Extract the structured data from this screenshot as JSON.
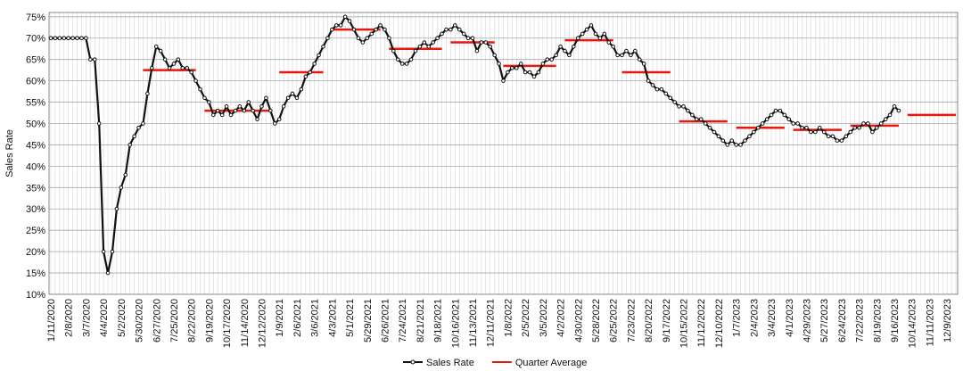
{
  "chart_data": {
    "type": "line",
    "y_label": "Sales Rate",
    "categories": [
      "1/11/2020",
      null,
      null,
      null,
      "2/8/2020",
      null,
      null,
      null,
      "3/7/2020",
      null,
      null,
      null,
      "4/4/2020",
      null,
      null,
      null,
      "5/2/2020",
      null,
      null,
      null,
      "5/30/2020",
      null,
      null,
      null,
      "6/27/2020",
      null,
      null,
      null,
      "7/25/2020",
      null,
      null,
      null,
      "8/22/2020",
      null,
      null,
      null,
      "9/19/2020",
      null,
      null,
      null,
      "10/17/2020",
      null,
      null,
      null,
      "11/14/2020",
      null,
      null,
      null,
      "12/12/2020",
      null,
      null,
      null,
      "1/9/2021",
      null,
      null,
      null,
      "2/6/2021",
      null,
      null,
      null,
      "3/6/2021",
      null,
      null,
      null,
      "4/3/2021",
      null,
      null,
      null,
      "5/1/2021",
      null,
      null,
      null,
      "5/29/2021",
      null,
      null,
      null,
      "6/26/2021",
      null,
      null,
      null,
      "7/24/2021",
      null,
      null,
      null,
      "8/21/2021",
      null,
      null,
      null,
      "9/18/2021",
      null,
      null,
      null,
      "10/16/2021",
      null,
      null,
      null,
      "11/13/2021",
      null,
      null,
      null,
      "12/11/2021",
      null,
      null,
      null,
      "1/8/2022",
      null,
      null,
      null,
      "2/5/2022",
      null,
      null,
      null,
      "3/5/2022",
      null,
      null,
      null,
      "4/2/2022",
      null,
      null,
      null,
      "4/30/2022",
      null,
      null,
      null,
      "5/28/2022",
      null,
      null,
      null,
      "6/25/2022",
      null,
      null,
      null,
      "7/23/2022",
      null,
      null,
      null,
      "8/20/2022",
      null,
      null,
      null,
      "9/17/2022",
      null,
      null,
      null,
      "10/15/2022",
      null,
      null,
      null,
      "11/12/2022",
      null,
      null,
      null,
      "12/10/2022",
      null,
      null,
      null,
      "1/7/2023",
      null,
      null,
      null,
      "2/4/2023",
      null,
      null,
      null,
      "3/4/2023",
      null,
      null,
      null,
      "4/1/2023",
      null,
      null,
      null,
      "4/29/2023",
      null,
      null,
      null,
      "5/27/2023",
      null,
      null,
      null,
      "6/24/2023",
      null,
      null,
      null,
      "7/22/2023",
      null,
      null,
      null,
      "8/19/2023",
      null,
      null,
      null,
      "9/16/2023",
      null,
      null,
      null,
      "10/14/2023",
      null,
      null,
      null,
      "11/11/2023",
      null,
      null,
      null,
      "12/9/2023",
      null,
      null
    ],
    "series": [
      {
        "name": "Sales Rate",
        "color": "#111111",
        "markers": true,
        "values": [
          70,
          70,
          70,
          70,
          70,
          70,
          70,
          70,
          70,
          65,
          65,
          50,
          20,
          15,
          20,
          30,
          35,
          38,
          45,
          47,
          49,
          50,
          57,
          63,
          68,
          67,
          65,
          63,
          64,
          65,
          63,
          63,
          62,
          60,
          58,
          56,
          55,
          52,
          53,
          52,
          54,
          52,
          53,
          54,
          53,
          55,
          53,
          51,
          54,
          56,
          53,
          50,
          51,
          54,
          56,
          57,
          56,
          58,
          61,
          62,
          64,
          66,
          68,
          70,
          72,
          73,
          73,
          75,
          74,
          72,
          70,
          69,
          70,
          71,
          72,
          73,
          72,
          70,
          67,
          65,
          64,
          64,
          65,
          67,
          68,
          69,
          68,
          69,
          70,
          71,
          72,
          72,
          73,
          72,
          71,
          70,
          70,
          67,
          69,
          69,
          68,
          66,
          64,
          60,
          62,
          63,
          63,
          64,
          62,
          62,
          61,
          62,
          64,
          65,
          65,
          66,
          68,
          67,
          66,
          68,
          70,
          71,
          72,
          73,
          71,
          70,
          71,
          69,
          68,
          66,
          66,
          67,
          66,
          67,
          65,
          64,
          60,
          59,
          58,
          58,
          57,
          56,
          55,
          54,
          54,
          53,
          52,
          51,
          51,
          50,
          49,
          48,
          47,
          46,
          45,
          46,
          45,
          45,
          46,
          47,
          48,
          49,
          50,
          51,
          52,
          53,
          53,
          52,
          51,
          50,
          50,
          49,
          49,
          48,
          48,
          49,
          48,
          47,
          47,
          46,
          46,
          47,
          48,
          49,
          49,
          50,
          50,
          48,
          49,
          50,
          51,
          52,
          54,
          53,
          null,
          null,
          null,
          null,
          null,
          null,
          null,
          null,
          null,
          null,
          null,
          null,
          null
        ]
      },
      {
        "name": "Quarter Average",
        "color": "#e8180c",
        "markers": false,
        "values": [
          70,
          70,
          70,
          70,
          70,
          70,
          70,
          70,
          null,
          null,
          null,
          null,
          null,
          null,
          null,
          null,
          null,
          null,
          null,
          null,
          null,
          62.5,
          62.5,
          62.5,
          62.5,
          62.5,
          62.5,
          62.5,
          62.5,
          62.5,
          62.5,
          62.5,
          62.5,
          62.5,
          null,
          53,
          53,
          53,
          53,
          53,
          53,
          53,
          53,
          53,
          53,
          53,
          53,
          53,
          53,
          53,
          53,
          null,
          62,
          62,
          62,
          62,
          62,
          62,
          62,
          62,
          62,
          62,
          62,
          null,
          72,
          72,
          72,
          72,
          72,
          72,
          72,
          72,
          72,
          72,
          72,
          72,
          null,
          67.5,
          67.5,
          67.5,
          67.5,
          67.5,
          67.5,
          67.5,
          67.5,
          67.5,
          67.5,
          67.5,
          67.5,
          67.5,
          null,
          69,
          69,
          69,
          69,
          69,
          69,
          69,
          69,
          69,
          69,
          69,
          null,
          63.5,
          63.5,
          63.5,
          63.5,
          63.5,
          63.5,
          63.5,
          63.5,
          63.5,
          63.5,
          63.5,
          63.5,
          63.5,
          null,
          69.5,
          69.5,
          69.5,
          69.5,
          69.5,
          69.5,
          69.5,
          69.5,
          69.5,
          69.5,
          69.5,
          69.5,
          null,
          62,
          62,
          62,
          62,
          62,
          62,
          62,
          62,
          62,
          62,
          62,
          62,
          null,
          50.5,
          50.5,
          50.5,
          50.5,
          50.5,
          50.5,
          50.5,
          50.5,
          50.5,
          50.5,
          50.5,
          50.5,
          null,
          49,
          49,
          49,
          49,
          49,
          49,
          49,
          49,
          49,
          49,
          49,
          49,
          null,
          48.5,
          48.5,
          48.5,
          48.5,
          48.5,
          48.5,
          48.5,
          48.5,
          48.5,
          48.5,
          48.5,
          48.5,
          null,
          49.5,
          49.5,
          49.5,
          49.5,
          49.5,
          49.5,
          49.5,
          49.5,
          49.5,
          49.5,
          49.5,
          49.5,
          null,
          52,
          52,
          52,
          52,
          52,
          52,
          52,
          52,
          52,
          52,
          52,
          52
        ]
      }
    ],
    "ylim": [
      10,
      76
    ],
    "yticks": [
      {
        "value": 10,
        "label": "10%"
      },
      {
        "value": 15,
        "label": "15%"
      },
      {
        "value": 20,
        "label": "20%"
      },
      {
        "value": 25,
        "label": "25%"
      },
      {
        "value": 30,
        "label": "30%"
      },
      {
        "value": 35,
        "label": "35%"
      },
      {
        "value": 40,
        "label": "40%"
      },
      {
        "value": 45,
        "label": "45%"
      },
      {
        "value": 50,
        "label": "50%"
      },
      {
        "value": 55,
        "label": "55%"
      },
      {
        "value": 60,
        "label": "60%"
      },
      {
        "value": 65,
        "label": "65%"
      },
      {
        "value": 70,
        "label": "70%"
      },
      {
        "value": 75,
        "label": "75%"
      }
    ],
    "grid": true
  }
}
